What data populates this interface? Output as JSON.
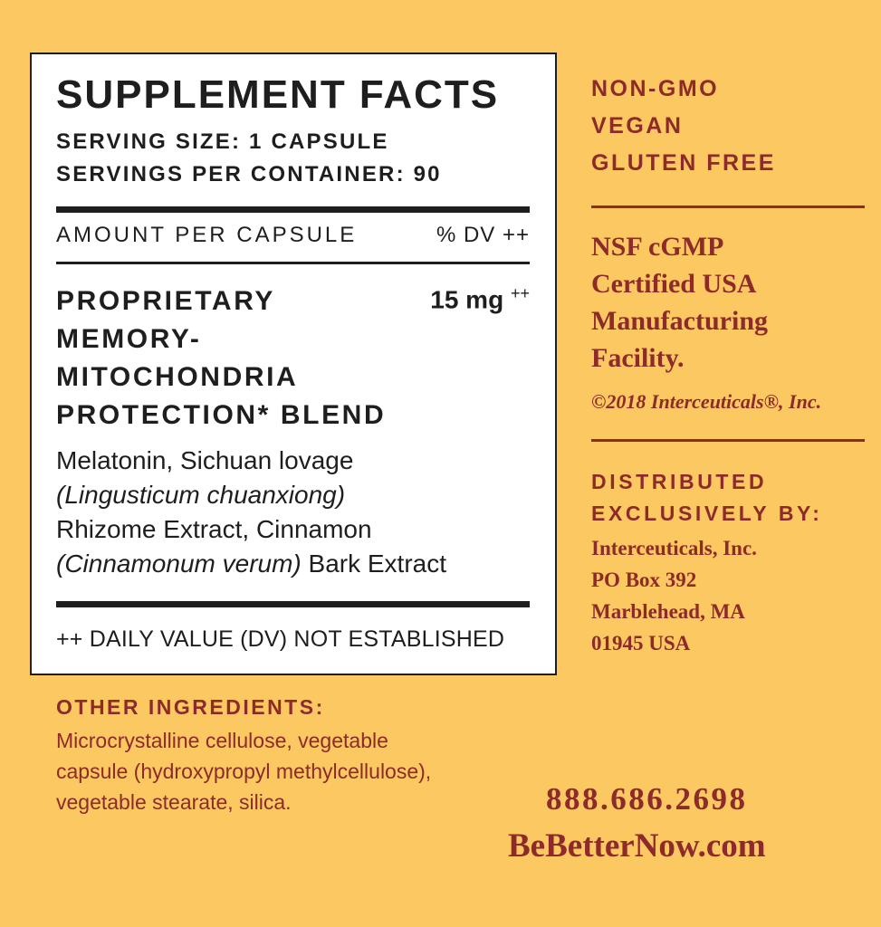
{
  "facts": {
    "title": "SUPPLEMENT FACTS",
    "serving_size": "SERVING SIZE: 1 CAPSULE",
    "servings_per_container": "SERVINGS PER CONTAINER: 90",
    "amount_header": "AMOUNT PER CAPSULE",
    "dv_header": "% DV ++",
    "blend_name": "PROPRIETARY MEMORY-MITOCHONDRIA PROTECTION* BLEND",
    "blend_amount": "15 mg",
    "blend_dv": "++",
    "ingredients": [
      {
        "text": "Melatonin, Sichuan lovage"
      },
      {
        "italic": "(Lingusticum chuanxiong)"
      },
      {
        "text": "Rhizome Extract, Cinnamon"
      },
      {
        "italic": "(Cinnamonum verum)",
        "text": " Bark Extract"
      }
    ],
    "footnote": "++ DAILY VALUE (DV) NOT ESTABLISHED"
  },
  "other_ingredients": {
    "label": "OTHER INGREDIENTS:",
    "lines": [
      "Microcrystalline cellulose, vegetable",
      "capsule (hydroxypropyl methylcellulose),",
      "vegetable stearate, silica."
    ]
  },
  "claims": [
    "NON-GMO",
    "VEGAN",
    "GLUTEN FREE"
  ],
  "certification": [
    "NSF cGMP",
    "Certified USA",
    "Manufacturing",
    "Facility."
  ],
  "copyright": "©2018 Interceuticals®, Inc.",
  "distributor": {
    "label": [
      "DISTRIBUTED",
      "EXCLUSIVELY BY:"
    ],
    "address": [
      "Interceuticals, Inc.",
      "PO Box 392",
      "Marblehead, MA",
      "01945 USA"
    ]
  },
  "contact": {
    "phone": "888.686.2698",
    "website": "BeBetterNow.com"
  },
  "colors": {
    "background": "#fcc862",
    "accent": "#8e2a2a",
    "text": "#1e1e1e"
  }
}
